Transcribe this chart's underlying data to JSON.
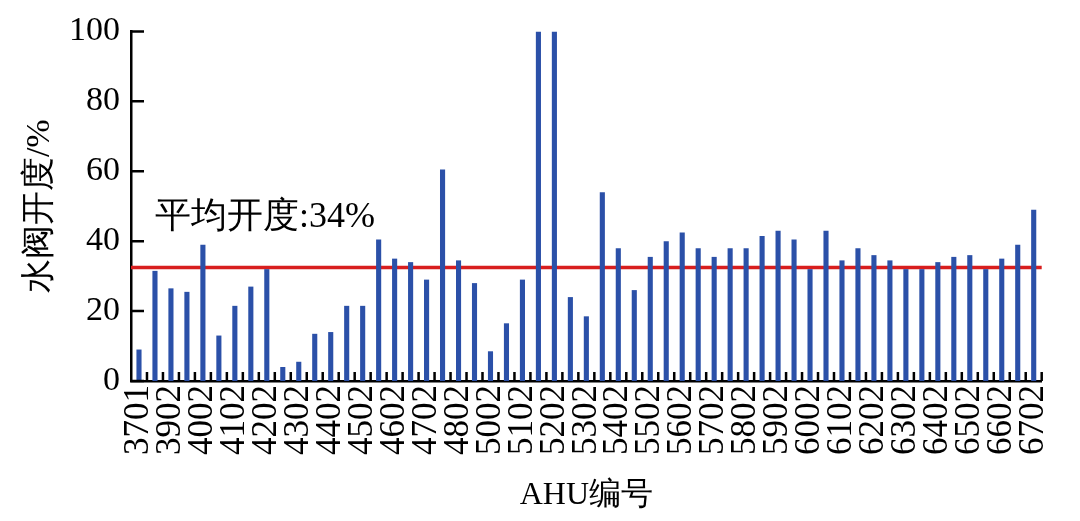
{
  "chart_data": {
    "type": "bar",
    "xlabel": "AHU编号",
    "ylabel": "水阀开度/%",
    "categories": [
      "3701",
      null,
      "3902",
      null,
      "4002",
      null,
      "4102",
      null,
      "4202",
      null,
      "4302",
      null,
      "4402",
      null,
      "4502",
      null,
      "4602",
      null,
      "4702",
      null,
      "4802",
      null,
      "5002",
      null,
      "5102",
      null,
      "5202",
      null,
      "5302",
      null,
      "5402",
      null,
      "5502",
      null,
      "5602",
      null,
      "5702",
      null,
      "5802",
      null,
      "5902",
      null,
      "6002",
      null,
      "6102",
      null,
      "6202",
      null,
      "6302",
      null,
      "6402",
      null,
      "6502",
      null,
      "6602",
      null,
      "6702"
    ],
    "values": [
      9,
      31.5,
      26.5,
      25.5,
      39,
      13,
      21.5,
      27,
      32,
      4,
      5.5,
      13.5,
      14,
      21.5,
      21.5,
      40.5,
      35,
      34,
      29,
      60.5,
      34.5,
      28,
      8.5,
      16.5,
      29,
      100,
      100,
      24,
      18.5,
      54,
      38,
      26,
      35.5,
      40,
      42.5,
      38,
      35.5,
      38,
      38,
      41.5,
      43,
      40.5,
      32,
      43,
      34.5,
      38,
      36,
      34.5,
      32,
      32,
      34,
      35.5,
      36,
      32,
      35,
      39,
      49
    ],
    "color": "#2b50a8",
    "ylim": [
      0,
      100
    ],
    "yticks": [
      0,
      20,
      40,
      60,
      80,
      100
    ],
    "ref_lines": [
      {
        "axis": "y",
        "value": 32.5,
        "color": "#d81e1e"
      }
    ],
    "annotations": [
      "平均开度:34%"
    ]
  }
}
